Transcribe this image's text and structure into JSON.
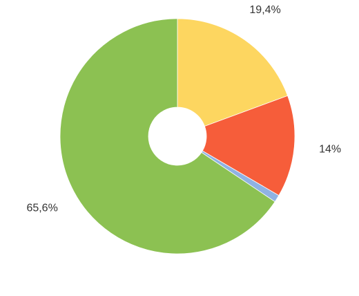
{
  "chart_data": {
    "type": "donut",
    "values": [
      19.4,
      14,
      1,
      65.6
    ],
    "value_labels": [
      "19,4%",
      "14%",
      null,
      "65,6%"
    ],
    "colors": [
      "#fdd660",
      "#f65d3a",
      "#8fb2e3",
      "#8cc152"
    ]
  }
}
